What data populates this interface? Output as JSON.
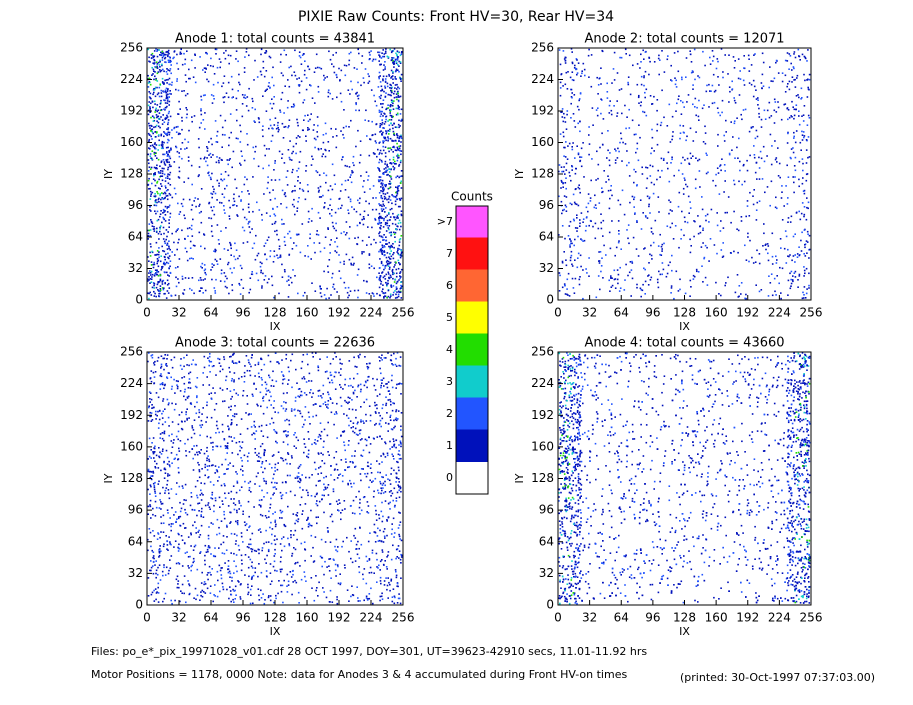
{
  "title": "PIXIE Raw Counts:  Front HV=30, Rear HV=34",
  "chart_data": [
    {
      "type": "heatmap",
      "title": "Anode 1: total counts = 43841",
      "x_label": "IX",
      "y_label": "IY",
      "xlim": [
        0,
        256
      ],
      "xticks": [
        0,
        32,
        64,
        96,
        128,
        160,
        192,
        224,
        256
      ],
      "ylim": [
        0,
        256
      ],
      "yticks": [
        0,
        32,
        64,
        96,
        128,
        160,
        192,
        224,
        256
      ]
    },
    {
      "type": "heatmap",
      "title": "Anode 2: total counts = 12071",
      "x_label": "IX",
      "y_label": "IY",
      "xlim": [
        0,
        256
      ],
      "xticks": [
        0,
        32,
        64,
        96,
        128,
        160,
        192,
        224,
        256
      ],
      "ylim": [
        0,
        256
      ],
      "yticks": [
        0,
        32,
        64,
        96,
        128,
        160,
        192,
        224,
        256
      ]
    },
    {
      "type": "heatmap",
      "title": "Anode 3: total counts = 22636",
      "x_label": "IX",
      "y_label": "IY",
      "xlim": [
        0,
        256
      ],
      "xticks": [
        0,
        32,
        64,
        96,
        128,
        160,
        192,
        224,
        256
      ],
      "ylim": [
        0,
        256
      ],
      "yticks": [
        0,
        32,
        64,
        96,
        128,
        160,
        192,
        224,
        256
      ]
    },
    {
      "type": "heatmap",
      "title": "Anode 4: total counts = 43660",
      "x_label": "IX",
      "y_label": "IY",
      "xlim": [
        0,
        256
      ],
      "xticks": [
        0,
        32,
        64,
        96,
        128,
        160,
        192,
        224,
        256
      ],
      "ylim": [
        0,
        256
      ],
      "yticks": [
        0,
        32,
        64,
        96,
        128,
        160,
        192,
        224,
        256
      ]
    }
  ],
  "colorbar": {
    "title": "Counts",
    "levels": [
      {
        "label": ">7",
        "color": "#ff55ff"
      },
      {
        "label": "7",
        "color": "#ff1111"
      },
      {
        "label": "6",
        "color": "#ff6633"
      },
      {
        "label": "5",
        "color": "#ffff00"
      },
      {
        "label": "4",
        "color": "#22dd00"
      },
      {
        "label": "3",
        "color": "#11cccc"
      },
      {
        "label": "2",
        "color": "#2255ff"
      },
      {
        "label": "1",
        "color": "#0011bb"
      },
      {
        "label": "0",
        "color": "#ffffff"
      }
    ]
  },
  "footer": {
    "files": "Files: po_e*_pix_19971028_v01.cdf    28 OCT 1997, DOY=301, UT=39623-42910 secs, 11.01-11.92 hrs",
    "motor": "Motor Positions = 1178, 0000   Note: data for Anodes 3 & 4 accumulated during Front HV-on times",
    "printed": "(printed: 30-Oct-1997 07:37:03.00)"
  }
}
